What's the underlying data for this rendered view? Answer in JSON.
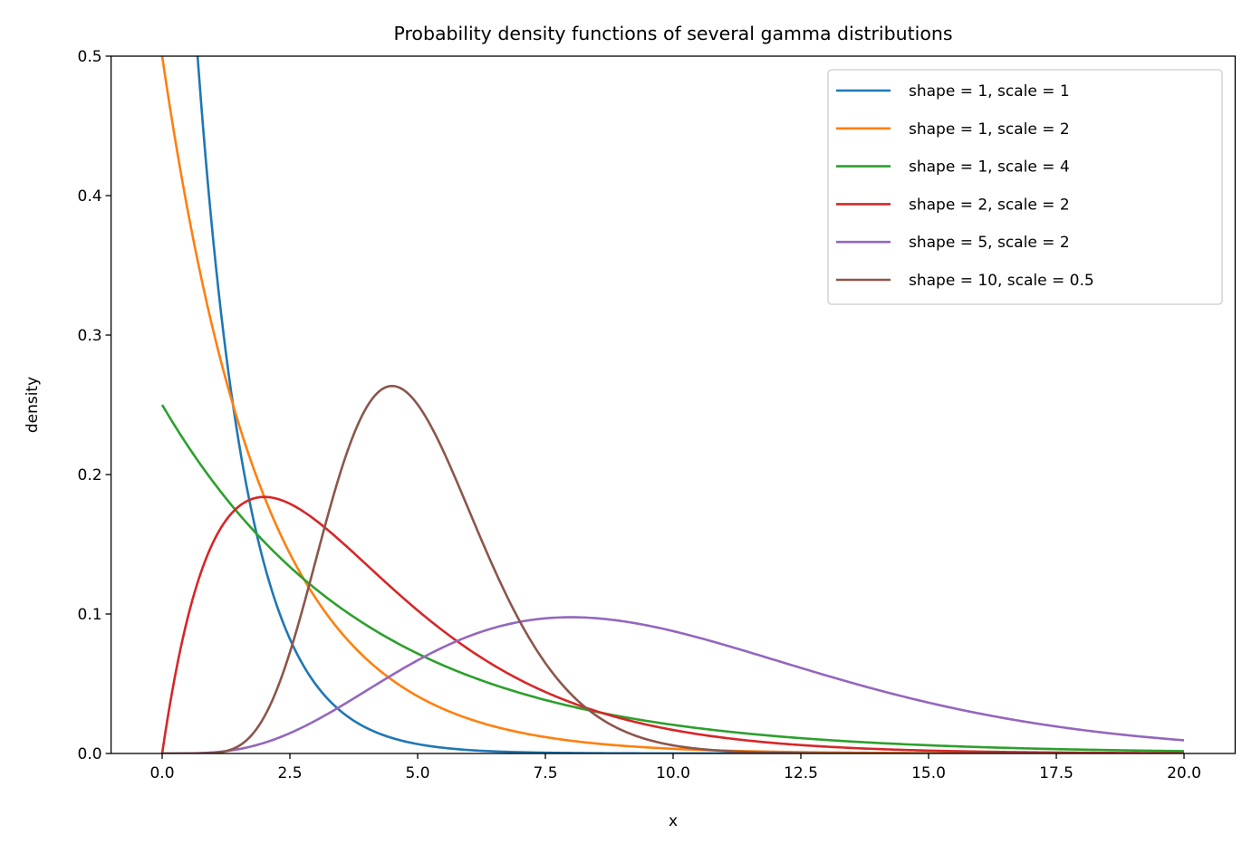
{
  "chart_data": {
    "type": "line",
    "title": "Probability density functions of several gamma distributions",
    "xlabel": "x",
    "ylabel": "density",
    "xlim": [
      -1,
      21
    ],
    "ylim": [
      0,
      0.5
    ],
    "x_domain": [
      0,
      20
    ],
    "x_samples": 400,
    "xticks": [
      "0.0",
      "2.5",
      "5.0",
      "7.5",
      "10.0",
      "12.5",
      "15.0",
      "17.5",
      "20.0"
    ],
    "xtick_values": [
      0,
      2.5,
      5,
      7.5,
      10,
      12.5,
      15,
      17.5,
      20
    ],
    "yticks": [
      "0.0",
      "0.1",
      "0.2",
      "0.3",
      "0.4",
      "0.5"
    ],
    "ytick_values": [
      0,
      0.1,
      0.2,
      0.3,
      0.4,
      0.5
    ],
    "grid": false,
    "legend_position": "top-right",
    "series": [
      {
        "name": "shape = 1, scale = 1",
        "shape": 1,
        "scale": 1,
        "color": "#1f77b4"
      },
      {
        "name": "shape = 1, scale = 2",
        "shape": 1,
        "scale": 2,
        "color": "#ff7f0e"
      },
      {
        "name": "shape = 1, scale = 4",
        "shape": 1,
        "scale": 4,
        "color": "#2ca02c"
      },
      {
        "name": "shape = 2, scale = 2",
        "shape": 2,
        "scale": 2,
        "color": "#d62728"
      },
      {
        "name": "shape = 5, scale = 2",
        "shape": 5,
        "scale": 2,
        "color": "#9467bd"
      },
      {
        "name": "shape = 10, scale = 0.5",
        "shape": 10,
        "scale": 0.5,
        "color": "#8c564b"
      }
    ]
  }
}
